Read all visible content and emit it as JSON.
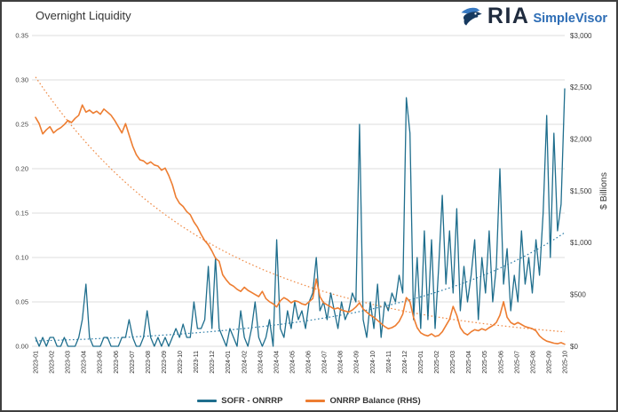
{
  "header": {
    "title": "Overnight Liquidity",
    "brand": {
      "name": "RIA",
      "product": "SimpleVisor"
    }
  },
  "icons": {
    "brand_logo": "eagle-icon"
  },
  "legend": {
    "items": [
      {
        "label": "SOFR - ONRRP",
        "color": "#1f6e8d"
      },
      {
        "label": "ONRRP Balance (RHS)",
        "color": "#ed7d31"
      }
    ]
  },
  "chart_data": {
    "type": "line",
    "title": "Overnight Liquidity",
    "grid": true,
    "legend_position": "bottom",
    "x_tick_labels": [
      "2023-01",
      "2023-02",
      "2023-03",
      "2023-04",
      "2023-05",
      "2023-06",
      "2023-07",
      "2023-08",
      "2023-09",
      "2023-10",
      "2023-11",
      "2023-12",
      "2024-01",
      "2024-02",
      "2024-03",
      "2024-04",
      "2024-05",
      "2024-06",
      "2024-07",
      "2024-08",
      "2024-09",
      "2024-10",
      "2024-11",
      "2024-12",
      "2025-01",
      "2025-02",
      "2025-03",
      "2025-04",
      "2025-05",
      "2025-06",
      "2025-07",
      "2025-08",
      "2025-09",
      "2025-10"
    ],
    "left_axis": {
      "ticks": [
        "0.00",
        "0.05",
        "0.10",
        "0.15",
        "0.20",
        "0.25",
        "0.30",
        "0.35"
      ],
      "range": [
        0,
        0.35
      ]
    },
    "right_axis": {
      "ticks": [
        "$0",
        "$500",
        "$1,000",
        "$1,500",
        "$2,000",
        "$2,500",
        "$3,000"
      ],
      "range": [
        0,
        3000
      ],
      "label": "$ Billions"
    },
    "series": [
      {
        "name": "SOFR - ONRRP",
        "axis": "left",
        "color": "#1f6e8d",
        "width": 1.3,
        "values": [
          0.01,
          0.0,
          0.01,
          0.0,
          0.01,
          0.01,
          0.0,
          0.0,
          0.01,
          0.0,
          0.0,
          0.0,
          0.01,
          0.03,
          0.07,
          0.01,
          0.0,
          0.0,
          0.0,
          0.01,
          0.01,
          0.0,
          0.0,
          0.0,
          0.01,
          0.01,
          0.03,
          0.01,
          0.0,
          0.0,
          0.01,
          0.04,
          0.01,
          0.0,
          0.01,
          0.0,
          0.01,
          0.0,
          0.01,
          0.02,
          0.01,
          0.025,
          0.01,
          0.01,
          0.05,
          0.02,
          0.02,
          0.03,
          0.09,
          0.02,
          0.1,
          0.02,
          0.01,
          0.0,
          0.02,
          0.01,
          0.0,
          0.04,
          0.01,
          0.0,
          0.02,
          0.05,
          0.01,
          0.0,
          0.01,
          0.03,
          0.0,
          0.12,
          0.02,
          0.01,
          0.04,
          0.02,
          0.05,
          0.03,
          0.04,
          0.02,
          0.05,
          0.06,
          0.1,
          0.04,
          0.05,
          0.03,
          0.06,
          0.04,
          0.02,
          0.05,
          0.03,
          0.04,
          0.06,
          0.05,
          0.25,
          0.03,
          0.01,
          0.05,
          0.02,
          0.07,
          0.01,
          0.05,
          0.04,
          0.06,
          0.05,
          0.08,
          0.06,
          0.28,
          0.24,
          0.03,
          0.1,
          0.02,
          0.13,
          0.03,
          0.12,
          0.02,
          0.09,
          0.17,
          0.07,
          0.13,
          0.06,
          0.155,
          0.04,
          0.09,
          0.05,
          0.08,
          0.12,
          0.03,
          0.1,
          0.06,
          0.13,
          0.05,
          0.09,
          0.2,
          0.07,
          0.11,
          0.04,
          0.08,
          0.05,
          0.13,
          0.07,
          0.1,
          0.06,
          0.12,
          0.08,
          0.15,
          0.26,
          0.1,
          0.24,
          0.13,
          0.16,
          0.29
        ]
      },
      {
        "name": "ONRRP Balance (RHS)",
        "axis": "right",
        "color": "#ed7d31",
        "width": 1.6,
        "values": [
          2210,
          2150,
          2050,
          2090,
          2120,
          2060,
          2090,
          2110,
          2140,
          2180,
          2160,
          2200,
          2230,
          2330,
          2260,
          2280,
          2250,
          2270,
          2240,
          2290,
          2260,
          2230,
          2180,
          2120,
          2060,
          2150,
          2040,
          1930,
          1850,
          1800,
          1790,
          1760,
          1780,
          1750,
          1740,
          1700,
          1720,
          1650,
          1560,
          1440,
          1380,
          1350,
          1300,
          1270,
          1200,
          1150,
          1080,
          1020,
          980,
          920,
          850,
          820,
          690,
          640,
          600,
          580,
          550,
          530,
          570,
          540,
          520,
          500,
          480,
          530,
          460,
          430,
          410,
          380,
          440,
          470,
          450,
          420,
          440,
          430,
          410,
          400,
          430,
          460,
          650,
          480,
          420,
          400,
          380,
          360,
          370,
          350,
          340,
          330,
          350,
          380,
          420,
          360,
          330,
          300,
          280,
          250,
          220,
          190,
          170,
          180,
          200,
          240,
          310,
          470,
          430,
          280,
          180,
          130,
          110,
          100,
          120,
          95,
          105,
          140,
          200,
          260,
          385,
          300,
          180,
          130,
          110,
          140,
          160,
          150,
          170,
          155,
          180,
          200,
          230,
          300,
          430,
          280,
          230,
          210,
          230,
          210,
          190,
          180,
          170,
          150,
          100,
          70,
          50,
          40,
          30,
          25,
          35,
          20
        ]
      }
    ],
    "trendlines": [
      {
        "for": "SOFR - ONRRP",
        "axis": "left",
        "color": "#2e7ea8",
        "style": "dotted",
        "shape": "exponential",
        "start": 0.006,
        "end": 0.128
      },
      {
        "for": "ONRRP Balance (RHS)",
        "axis": "right",
        "color": "#ef8a45",
        "style": "dotted",
        "shape": "exponential",
        "start": 2600,
        "end": 140
      }
    ]
  }
}
